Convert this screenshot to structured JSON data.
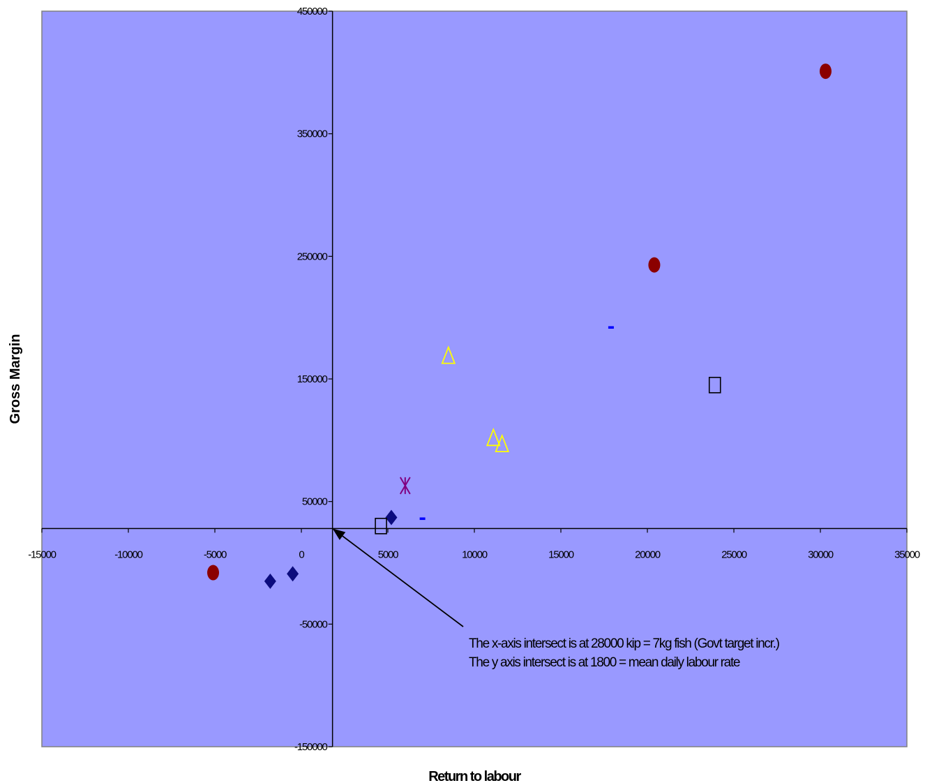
{
  "chart_data": {
    "type": "scatter",
    "title": "",
    "xlabel": "Return to labour",
    "ylabel": "Gross Margin",
    "xlim": [
      -15000,
      35000
    ],
    "ylim": [
      -150000,
      450000
    ],
    "x_ticks": [
      -15000,
      -10000,
      -5000,
      0,
      5000,
      10000,
      15000,
      20000,
      25000,
      30000,
      35000
    ],
    "y_ticks": [
      -150000,
      -50000,
      50000,
      150000,
      250000,
      350000,
      450000
    ],
    "x_tick_labels": [
      "-15000",
      "-10000",
      "-5000",
      "0",
      "5000",
      "10000",
      "15000",
      "20000",
      "25000",
      "30000",
      "35000"
    ],
    "y_tick_labels": [
      "-150000",
      "-50000",
      "50000",
      "150000",
      "250000",
      "350000",
      "450000"
    ],
    "axis_cross": {
      "x": 1800,
      "y": 28000
    },
    "grid": false,
    "legend": "none",
    "plot_background": "#9999ff",
    "series": [
      {
        "marker": "circle",
        "color": "#8b0000",
        "points": [
          [
            -5100,
            -8000
          ],
          [
            20400,
            243000
          ],
          [
            30300,
            401000
          ]
        ]
      },
      {
        "marker": "diamond",
        "color": "#0c0c7e",
        "points": [
          [
            -1800,
            -15000
          ],
          [
            -500,
            -9000
          ],
          [
            5200,
            37000
          ]
        ]
      },
      {
        "marker": "square-open",
        "color": "#000000",
        "points": [
          [
            4600,
            30000
          ],
          [
            23900,
            145000
          ]
        ]
      },
      {
        "marker": "triangle-open",
        "color": "#ffff00",
        "points": [
          [
            8500,
            169000
          ],
          [
            11100,
            102000
          ],
          [
            11600,
            97000
          ]
        ]
      },
      {
        "marker": "star",
        "color": "#800080",
        "points": [
          [
            6000,
            63000
          ]
        ]
      },
      {
        "marker": "dash",
        "color": "#0000ff",
        "points": [
          [
            7000,
            36000
          ],
          [
            17900,
            192000
          ]
        ]
      }
    ],
    "annotation": {
      "lines": [
        "The x-axis intersect is at 28000 kip = 7kg fish (Govt target incr.)",
        "The y axis intersect is at 1800 = mean daily labour rate"
      ],
      "arrow_to": {
        "x": 1800,
        "y": 28000
      }
    }
  }
}
